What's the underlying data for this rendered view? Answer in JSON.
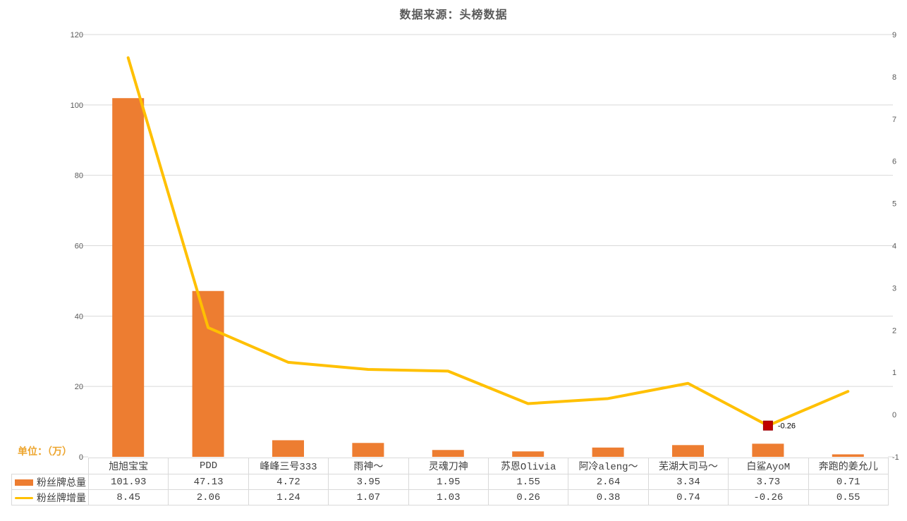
{
  "title": "数据来源：头榜数据",
  "unit_label": "单位：（万）",
  "colors": {
    "bar": "#ED7D31",
    "line": "#FFC000",
    "marker": "#C00000",
    "marker_border": "#9C0006",
    "title_text": "#595959",
    "axis_text": "#595959",
    "grid": "#D9D9D9",
    "unit_text": "#EDA52E",
    "table_border": "#D9D9D9",
    "table_text": "#3F3F3F"
  },
  "chart_data": {
    "type": "bar+line combo with data table",
    "title": "数据来源：头榜数据",
    "categories": [
      "旭旭宝宝",
      "PDD",
      "峰峰三号333",
      "雨神〜",
      "灵魂刀神",
      "苏恩Olivia",
      "阿冷aleng〜",
      "芜湖大司马〜",
      "白鲨AyoM",
      "奔跑的姜允儿"
    ],
    "series": [
      {
        "name": "粉丝牌总量",
        "type": "bar",
        "axis": "left",
        "values": [
          101.93,
          47.13,
          4.72,
          3.95,
          1.95,
          1.55,
          2.64,
          3.34,
          3.73,
          0.71
        ]
      },
      {
        "name": "粉丝牌增量",
        "type": "line",
        "axis": "right",
        "values": [
          8.45,
          2.06,
          1.24,
          1.07,
          1.03,
          0.26,
          0.38,
          0.74,
          -0.26,
          0.55
        ]
      }
    ],
    "left_axis": {
      "min": 0,
      "max": 120,
      "step": 20,
      "tick_labels": [
        "0",
        "20",
        "40",
        "60",
        "80",
        "100",
        "120"
      ]
    },
    "right_axis": {
      "min": -1,
      "max": 9,
      "step": 1,
      "tick_labels": [
        "-1",
        "0",
        "1",
        "2",
        "3",
        "4",
        "5",
        "6",
        "7",
        "8",
        "9"
      ]
    },
    "annotation": {
      "series_index": 1,
      "point_index": 8,
      "label": "-0.26"
    },
    "grid": true,
    "legend_position": "data-table-left-keys",
    "unit_note": "单位：（万）"
  }
}
